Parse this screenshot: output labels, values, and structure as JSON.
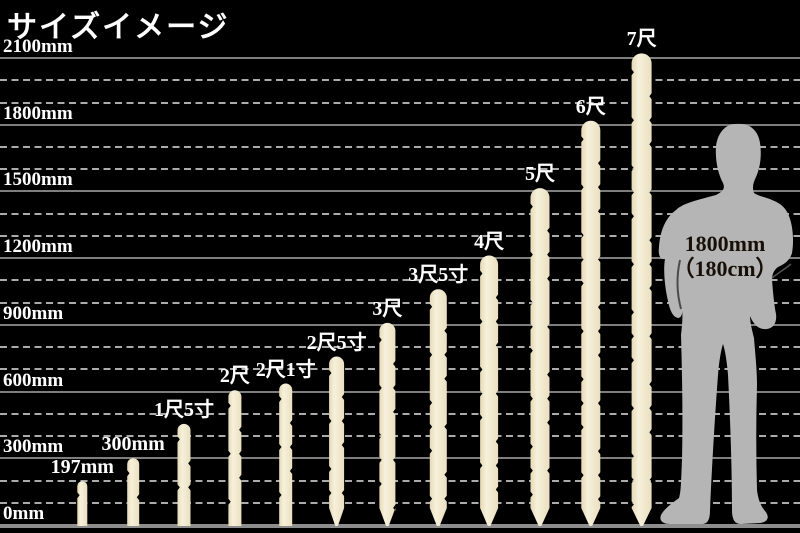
{
  "title": "サイズイメージ",
  "chart_data": {
    "type": "bar",
    "title": "サイズイメージ",
    "ylabel_unit": "mm",
    "ylim": [
      0,
      2100
    ],
    "grid": "on",
    "legend": "none",
    "gridline_minor_step_mm": 100,
    "gridline_major_step_mm": 300,
    "ytick_labels": [
      "0mm",
      "300mm",
      "600mm",
      "900mm",
      "1200mm",
      "1500mm",
      "1800mm",
      "2100mm"
    ],
    "categories": [
      "197mm",
      "300mm",
      "1尺5寸",
      "2尺",
      "2尺1寸",
      "2尺5寸",
      "3尺",
      "3尺5寸",
      "4尺",
      "5尺",
      "6尺",
      "7尺"
    ],
    "values_mm": [
      197,
      300,
      454.5,
      606,
      636.3,
      757.5,
      909,
      1060.5,
      1212,
      1515,
      1818,
      2121
    ],
    "pointed_bottom": [
      false,
      false,
      false,
      false,
      false,
      true,
      true,
      true,
      true,
      true,
      true,
      true
    ],
    "colors": {
      "background": "#000000",
      "stake": "#f3ecd3",
      "stake_edge": "#e6dab6",
      "gridline_major": "#7e7e7e",
      "gridline_minor_dash": "#ababab",
      "label_text": "#ffffff",
      "silhouette": "#b5b5b5",
      "figure_text": "#181008"
    },
    "reference_figure": {
      "height_mm": 1800,
      "label_line1": "1800mm",
      "label_line2": "（180cm）"
    }
  }
}
